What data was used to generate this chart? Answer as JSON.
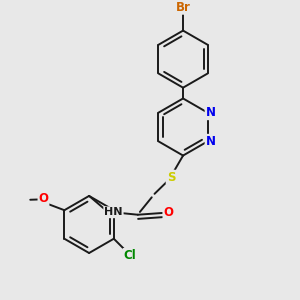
{
  "background_color": "#e8e8e8",
  "bond_color": "#1a1a1a",
  "atom_colors": {
    "Br": "#cc6600",
    "N": "#0000ee",
    "O": "#ff0000",
    "S": "#cccc00",
    "Cl": "#008800",
    "C": "#1a1a1a",
    "H": "#1a1a1a"
  },
  "line_width": 1.4,
  "font_size": 8.5,
  "double_sep": 0.012
}
